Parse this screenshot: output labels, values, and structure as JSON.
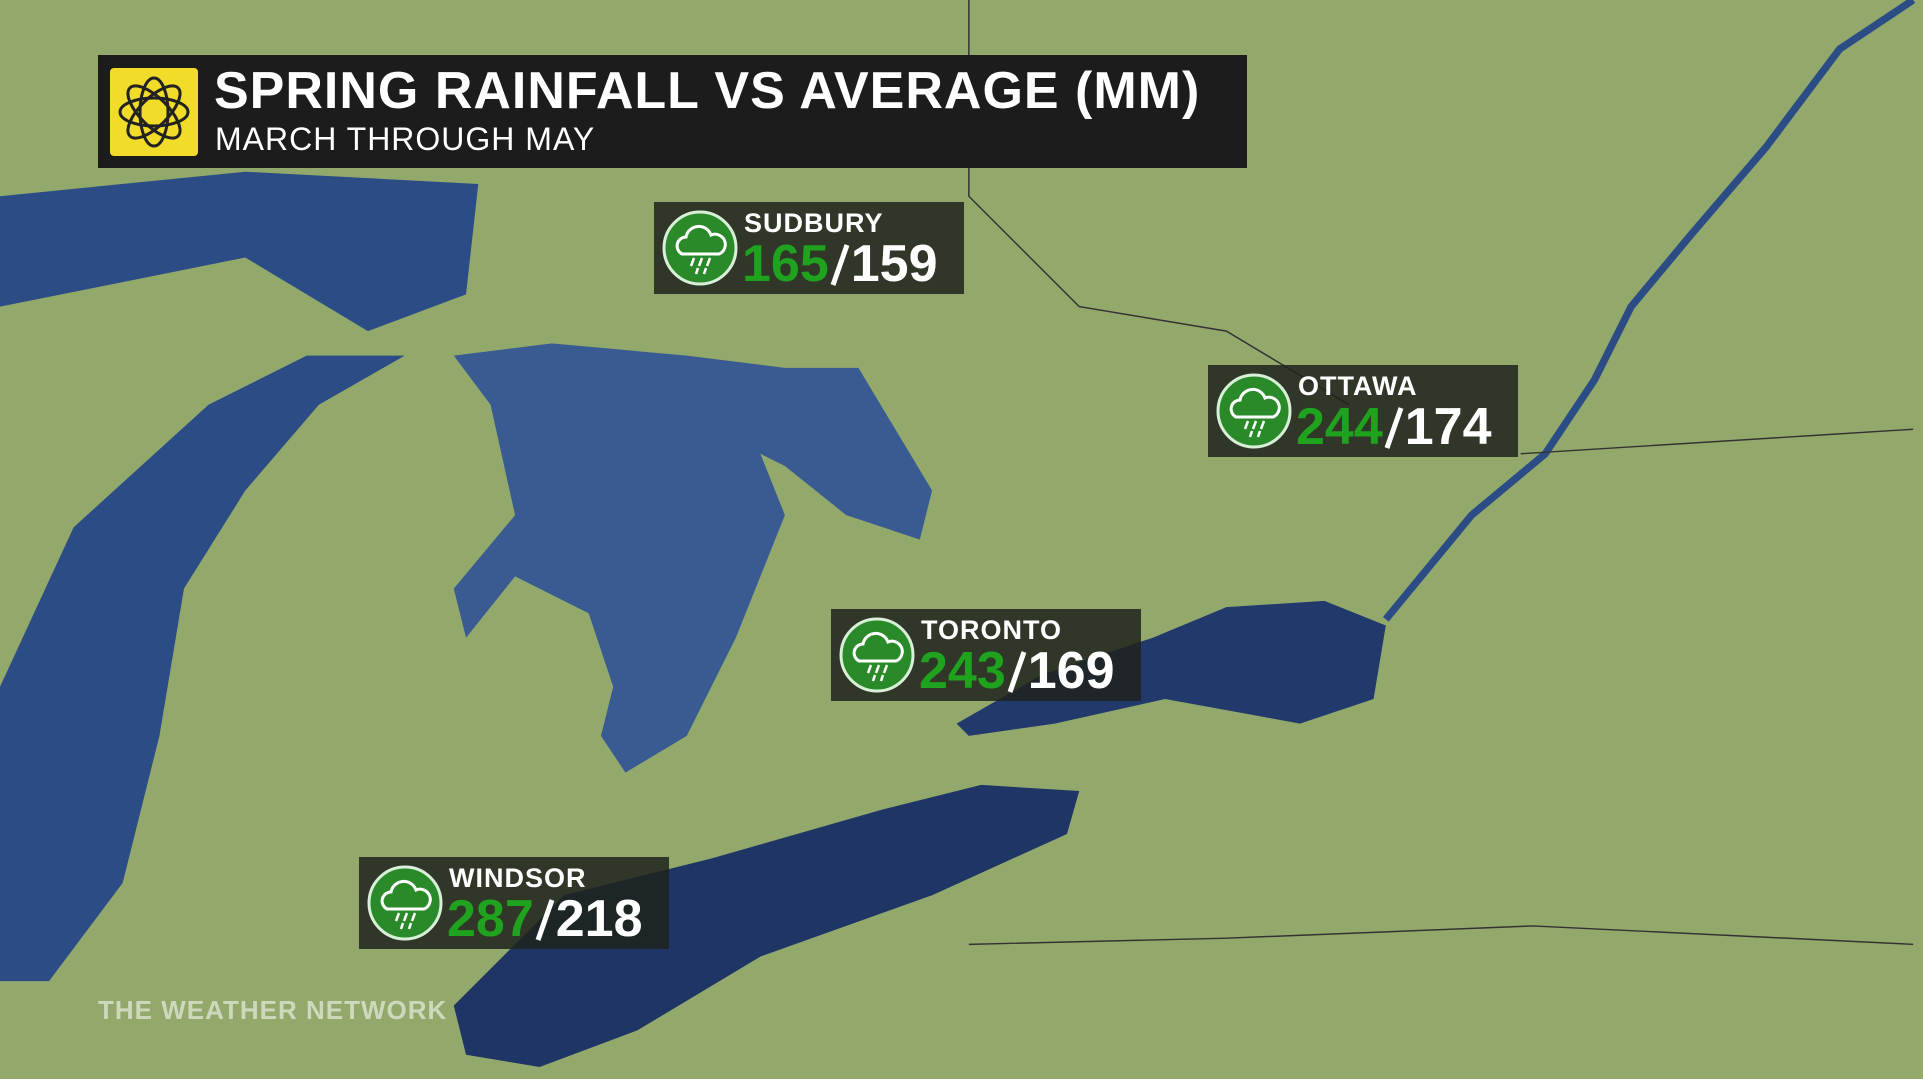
{
  "header": {
    "title": "SPRING RAINFALL VS AVERAGE (MM)",
    "subtitle": "MARCH THROUGH MAY"
  },
  "cities": [
    {
      "name": "SUDBURY",
      "rainfall": 165,
      "average": 159
    },
    {
      "name": "OTTAWA",
      "rainfall": 244,
      "average": 174
    },
    {
      "name": "TORONTO",
      "rainfall": 243,
      "average": 169
    },
    {
      "name": "WINDSOR",
      "rainfall": 287,
      "average": 218
    }
  ],
  "footer": "THE WEATHER NETWORK"
}
